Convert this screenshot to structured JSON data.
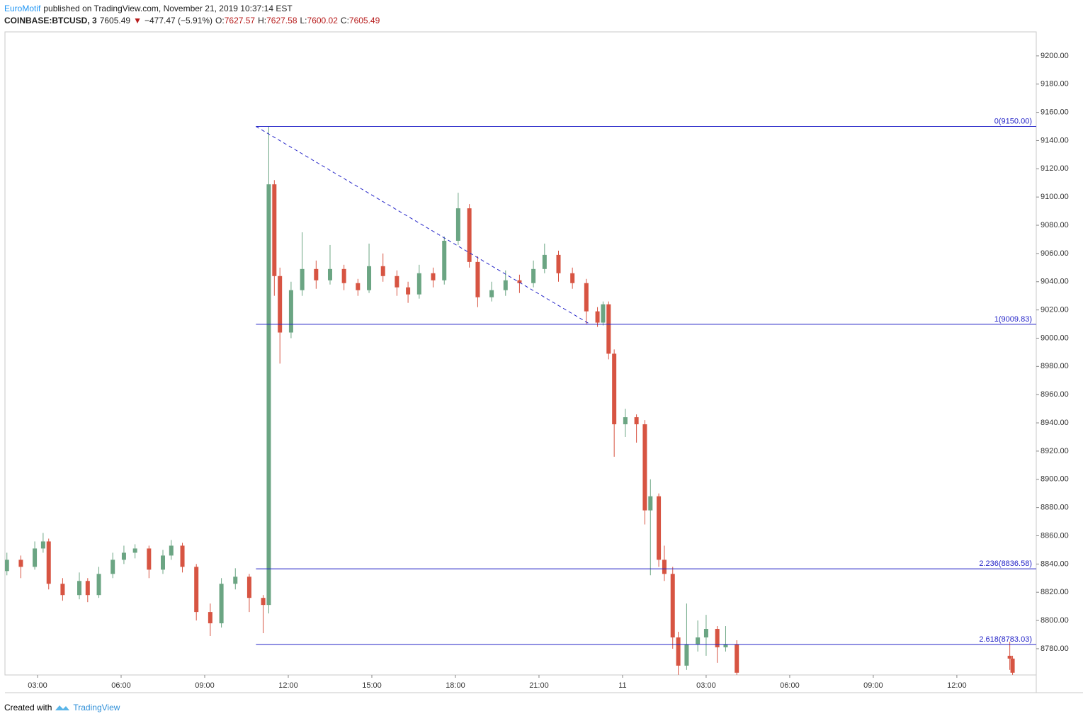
{
  "header": {
    "author": "EuroMotif",
    "published": "published on TradingView.com, November 21, 2019 10:37:14 EST"
  },
  "footer": {
    "created": "Created with",
    "brand": "TradingView"
  },
  "chart_data": {
    "type": "candlestick",
    "symbol": "COINBASE:BTCUSD, 3",
    "last": "7605.49",
    "arrow": "▼",
    "change": "−477.47 (−5.91%)",
    "o_label": "O:",
    "o": "7627.57",
    "h_label": "H:",
    "h": "7627.58",
    "l_label": "L:",
    "l": "7600.02",
    "c_label": "C:",
    "c": "7605.49",
    "up_color": "#6ba583",
    "down_color": "#d75442",
    "x": [
      1.9,
      2.4,
      2.9,
      3.2,
      3.4,
      3.9,
      4.5,
      4.8,
      5.2,
      5.7,
      6.1,
      6.5,
      7.0,
      7.5,
      7.8,
      8.2,
      8.7,
      9.2,
      9.6,
      10.1,
      10.6,
      11.1,
      11.3,
      11.5,
      11.7,
      12.1,
      12.5,
      13.0,
      13.5,
      14.0,
      14.5,
      14.9,
      15.4,
      15.9,
      16.3,
      16.7,
      17.2,
      17.6,
      18.1,
      18.5,
      18.8,
      19.3,
      19.8,
      20.3,
      20.8,
      21.2,
      21.7,
      22.2,
      22.7,
      23.1,
      23.3,
      23.5,
      23.7,
      24.1,
      24.5,
      24.8,
      25.0,
      25.3,
      25.5,
      25.8,
      26.0,
      26.3,
      26.7,
      27.0,
      27.4,
      27.7,
      28.1,
      37.9,
      38.0
    ],
    "open": [
      8835,
      8843,
      8838,
      8851,
      8856,
      8826,
      8818,
      8828,
      8818,
      8833,
      8843,
      8848,
      8851,
      8836,
      8846,
      8853,
      8838,
      8806,
      8798,
      8826,
      8831,
      8816,
      8811,
      9109,
      9044,
      9004,
      9034,
      9049,
      9041,
      9049,
      9039,
      9034,
      9051,
      9044,
      9036,
      9031,
      9046,
      9041,
      9069,
      9092,
      9054,
      9029,
      9034,
      9041,
      9039,
      9049,
      9059,
      9046,
      9039,
      9019,
      9011,
      9024,
      8989,
      8939,
      8944,
      8939,
      8878,
      8888,
      8843,
      8833,
      8788,
      8768,
      8783,
      8788,
      8794,
      8781,
      8783,
      8775,
      8773
    ],
    "high": [
      8848,
      8846,
      8856,
      8862,
      8858,
      8830,
      8834,
      8830,
      8838,
      8848,
      8853,
      8854,
      8853,
      8850,
      8857,
      8855,
      8840,
      8812,
      8830,
      8837,
      8833,
      8818,
      9150,
      9112,
      9050,
      9040,
      9075,
      9055,
      9066,
      9052,
      9042,
      9067,
      9060,
      9048,
      9040,
      9052,
      9050,
      9072,
      9103,
      9095,
      9058,
      9040,
      9048,
      9045,
      9055,
      9067,
      9062,
      9050,
      9042,
      9022,
      9026,
      9026,
      8992,
      8950,
      8946,
      8942,
      8900,
      8890,
      8853,
      8838,
      8792,
      8812,
      8800,
      8804,
      8796,
      8796,
      8786,
      8785,
      8775
    ],
    "low": [
      8832,
      8830,
      8836,
      8848,
      8822,
      8814,
      8815,
      8813,
      8816,
      8830,
      8840,
      8844,
      8830,
      8833,
      8843,
      8834,
      8800,
      8789,
      8795,
      8822,
      8806,
      8791,
      8805,
      9030,
      8982,
      9000,
      9030,
      9035,
      9038,
      9034,
      9030,
      9032,
      9040,
      9030,
      9025,
      9028,
      9036,
      9038,
      9066,
      9050,
      9022,
      9026,
      9030,
      9032,
      9036,
      9046,
      9040,
      9035,
      9010,
      9008,
      9009,
      8985,
      8916,
      8930,
      8926,
      8868,
      8832,
      8838,
      8828,
      8780,
      8761.5,
      8765,
      8778,
      8775,
      8770,
      8778,
      8761.5,
      8765,
      8761.5
    ],
    "close": [
      8843,
      8838,
      8851,
      8856,
      8826,
      8818,
      8828,
      8818,
      8833,
      8843,
      8848,
      8851,
      8836,
      8846,
      8853,
      8838,
      8806,
      8798,
      8826,
      8831,
      8816,
      8811,
      9109,
      9044,
      9004,
      9034,
      9049,
      9041,
      9049,
      9039,
      9034,
      9051,
      9044,
      9036,
      9031,
      9046,
      9041,
      9069,
      9092,
      9054,
      9029,
      9034,
      9041,
      9039,
      9049,
      9059,
      9046,
      9039,
      9019,
      9011,
      9024,
      8989,
      8939,
      8944,
      8939,
      8878,
      8888,
      8843,
      8833,
      8788,
      8768,
      8783,
      8788,
      8794,
      8781,
      8783,
      8763,
      8773,
      8763
    ],
    "xlim": [
      1.83,
      38.85
    ],
    "ylim": [
      8761.4,
      9217
    ],
    "xticks": [
      {
        "value": 3,
        "label": "03:00"
      },
      {
        "value": 6,
        "label": "06:00"
      },
      {
        "value": 9,
        "label": "09:00"
      },
      {
        "value": 12,
        "label": "12:00"
      },
      {
        "value": 15,
        "label": "15:00"
      },
      {
        "value": 18,
        "label": "18:00"
      },
      {
        "value": 21,
        "label": "21:00"
      },
      {
        "value": 24,
        "label": "11"
      },
      {
        "value": 27,
        "label": "03:00"
      },
      {
        "value": 30,
        "label": "06:00"
      },
      {
        "value": 33,
        "label": "09:00"
      },
      {
        "value": 36,
        "label": "12:00"
      }
    ],
    "yticks": [
      {
        "value": 8780,
        "label": "8780.00"
      },
      {
        "value": 8800,
        "label": "8800.00"
      },
      {
        "value": 8820,
        "label": "8820.00"
      },
      {
        "value": 8840,
        "label": "8840.00"
      },
      {
        "value": 8860,
        "label": "8860.00"
      },
      {
        "value": 8880,
        "label": "8880.00"
      },
      {
        "value": 8900,
        "label": "8900.00"
      },
      {
        "value": 8920,
        "label": "8920.00"
      },
      {
        "value": 8940,
        "label": "8940.00"
      },
      {
        "value": 8960,
        "label": "8960.00"
      },
      {
        "value": 8980,
        "label": "8980.00"
      },
      {
        "value": 9000,
        "label": "9000.00"
      },
      {
        "value": 9020,
        "label": "9020.00"
      },
      {
        "value": 9040,
        "label": "9040.00"
      },
      {
        "value": 9060,
        "label": "9060.00"
      },
      {
        "value": 9080,
        "label": "9080.00"
      },
      {
        "value": 9100,
        "label": "9100.00"
      },
      {
        "value": 9120,
        "label": "9120.00"
      },
      {
        "value": 9140,
        "label": "9140.00"
      },
      {
        "value": 9160,
        "label": "9160.00"
      },
      {
        "value": 9180,
        "label": "9180.00"
      },
      {
        "value": 9200,
        "label": "9200.00"
      }
    ],
    "fib_color": "#2424c8",
    "fib_start": 10.84,
    "fib_levels": [
      {
        "value": 9150,
        "label": "0(9150.00)"
      },
      {
        "value": 9009.83,
        "label": "1(9009.83)"
      },
      {
        "value": 8836.58,
        "label": "2.236(8836.58)"
      },
      {
        "value": 8783.03,
        "label": "2.618(8783.03)"
      }
    ],
    "trend_line": {
      "x": [
        10.84,
        22.84
      ],
      "y": [
        9150,
        9009.83
      ]
    }
  }
}
